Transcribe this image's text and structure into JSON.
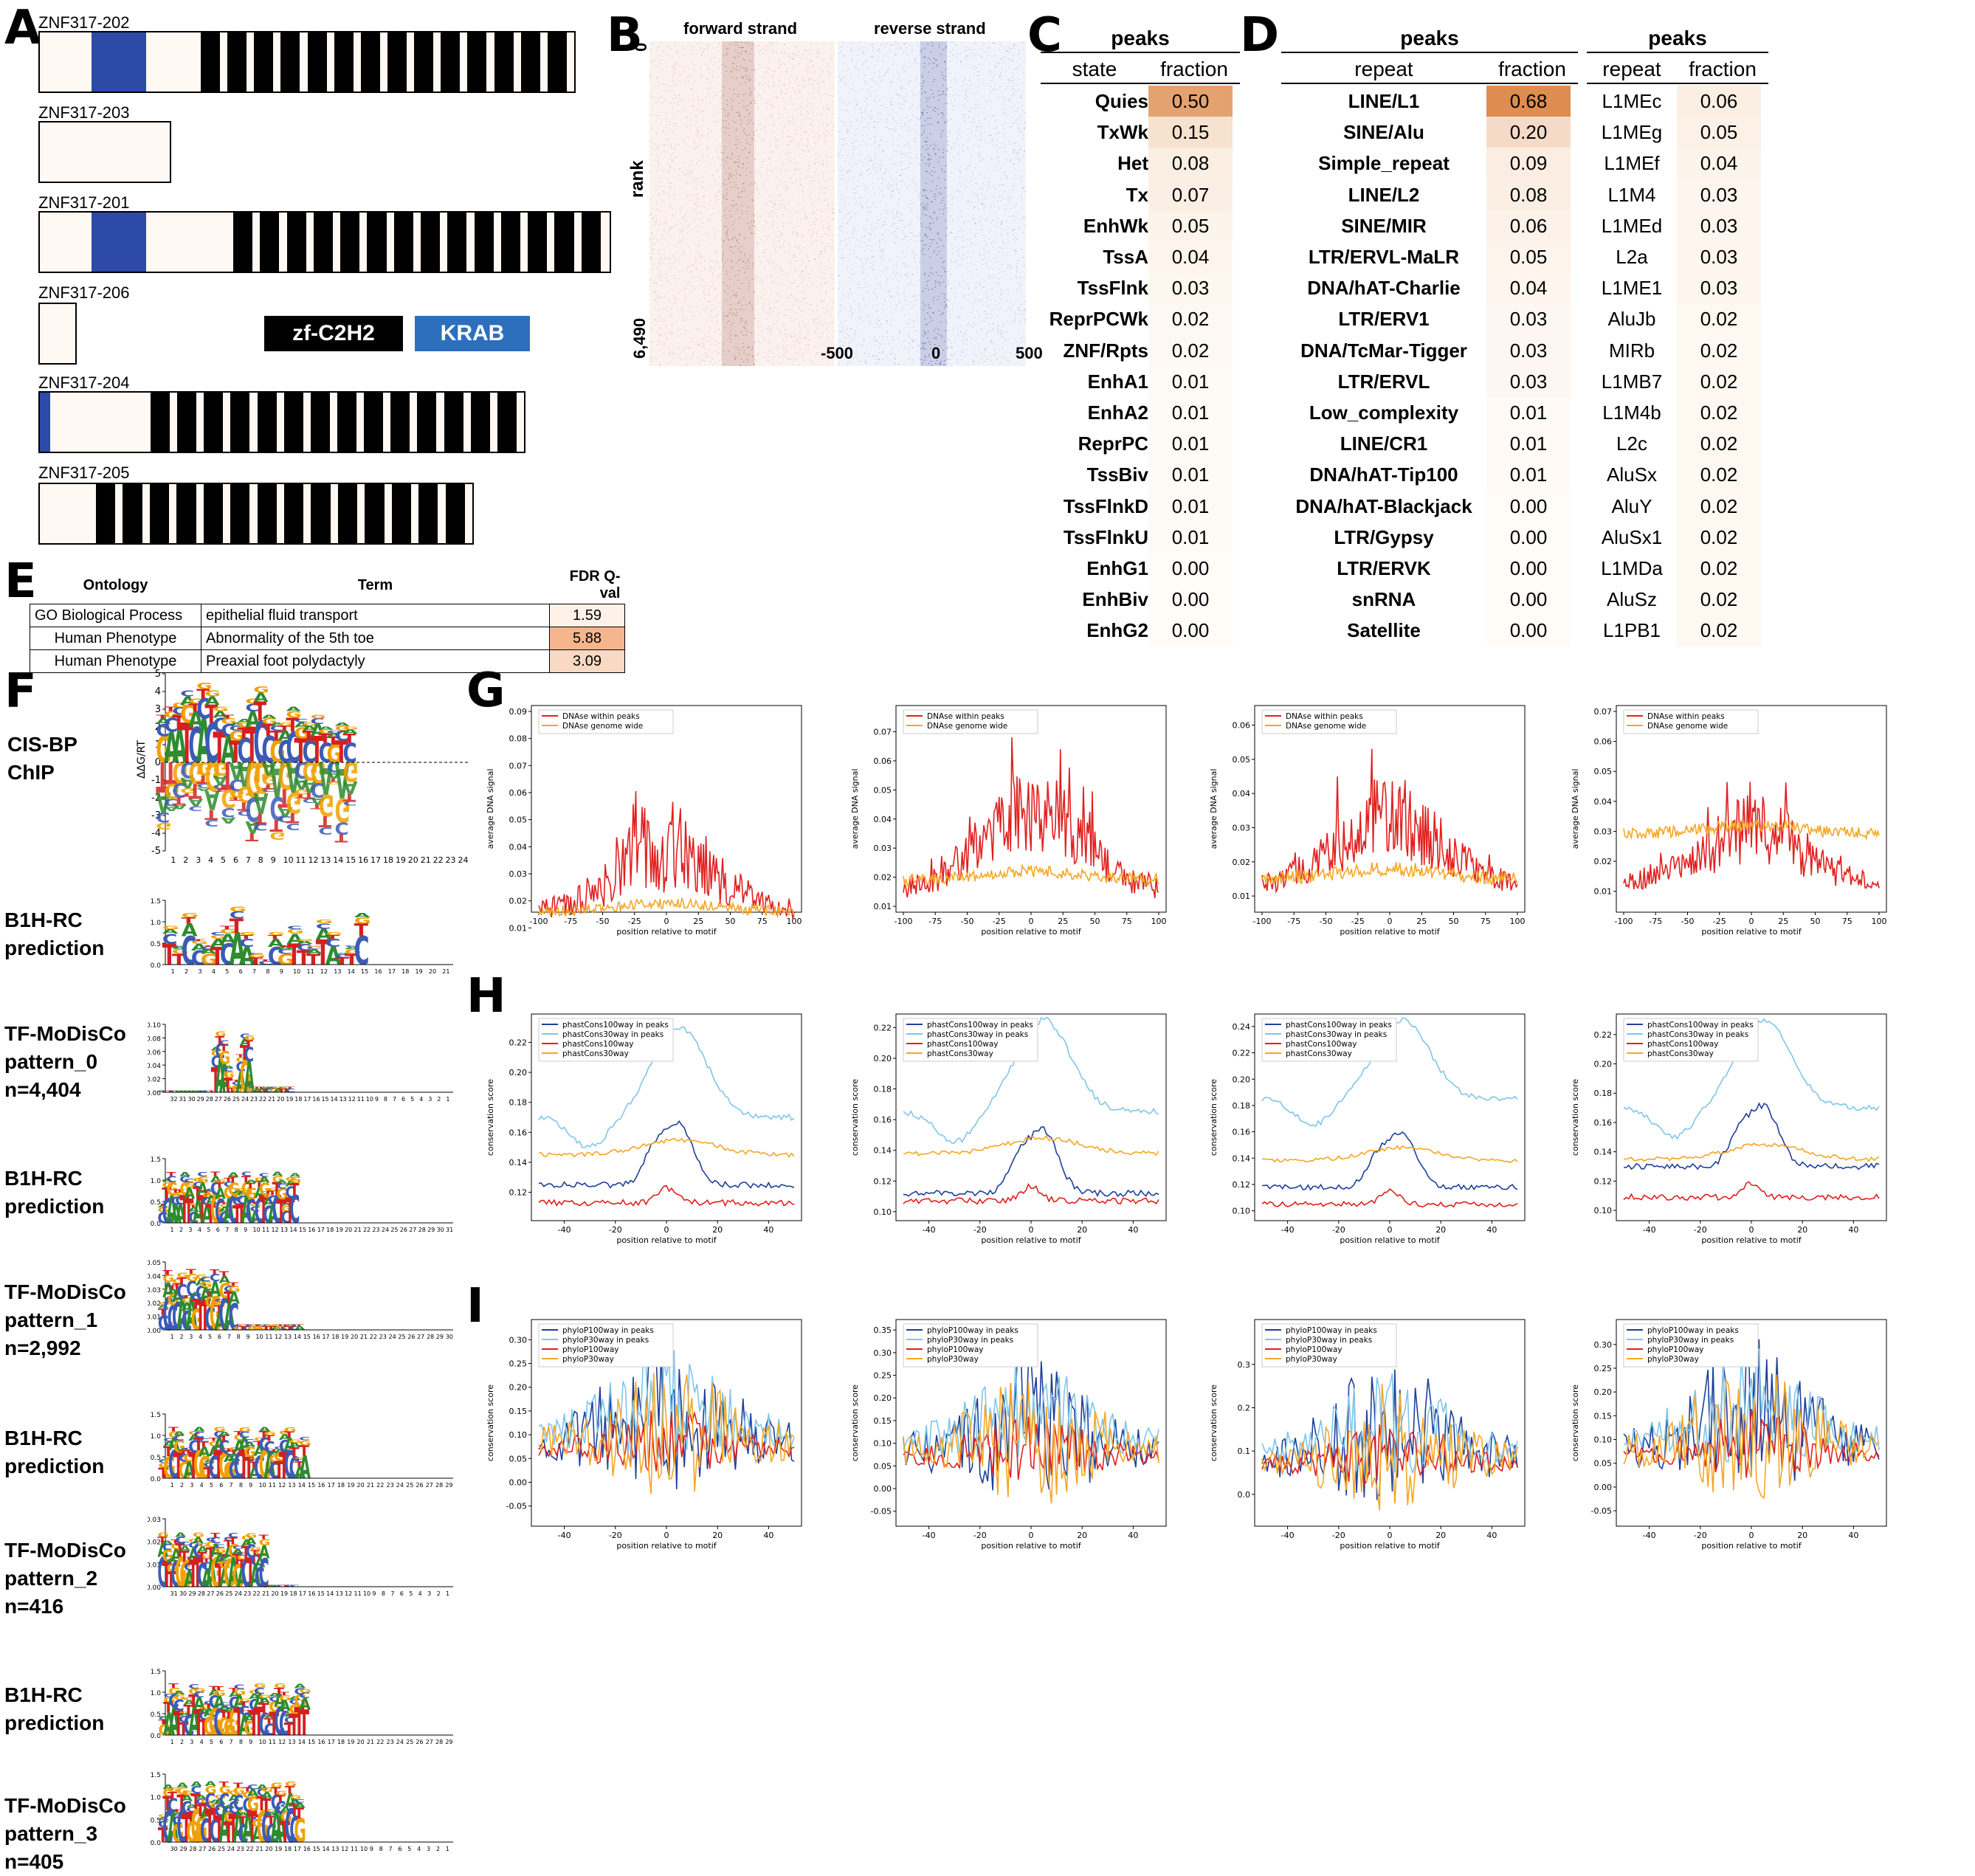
{
  "panels": {
    "A": "A",
    "B": "B",
    "C": "C",
    "D": "D",
    "E": "E",
    "F": "F",
    "G": "G",
    "H": "H",
    "I": "I"
  },
  "panelA": {
    "transcripts": [
      {
        "name": "ZNF317-202"
      },
      {
        "name": "ZNF317-203"
      },
      {
        "name": "ZNF317-201"
      },
      {
        "name": "ZNF317-206"
      },
      {
        "name": "ZNF317-204"
      },
      {
        "name": "ZNF317-205"
      }
    ],
    "legend": {
      "zf": "zf-C2H2",
      "krab": "KRAB",
      "zf_color": "#000000",
      "krab_color": "#2e6fbd"
    }
  },
  "panelB": {
    "forward": "forward strand",
    "reverse": "reverse strand",
    "ylabel": "rank",
    "ytop": "0",
    "ybottom": "6,490",
    "xticks": [
      "-500",
      "0",
      "500"
    ],
    "forward_color": "#c0392b",
    "reverse_color": "#1f2d8a"
  },
  "panelC": {
    "header": "peaks",
    "col1": "state",
    "col2": "fraction",
    "rows": [
      {
        "label": "Quies",
        "value": "0.50"
      },
      {
        "label": "TxWk",
        "value": "0.15"
      },
      {
        "label": "Het",
        "value": "0.08"
      },
      {
        "label": "Tx",
        "value": "0.07"
      },
      {
        "label": "EnhWk",
        "value": "0.05"
      },
      {
        "label": "TssA",
        "value": "0.04"
      },
      {
        "label": "TssFlnk",
        "value": "0.03"
      },
      {
        "label": "ReprPCWk",
        "value": "0.02"
      },
      {
        "label": "ZNF/Rpts",
        "value": "0.02"
      },
      {
        "label": "EnhA1",
        "value": "0.01"
      },
      {
        "label": "EnhA2",
        "value": "0.01"
      },
      {
        "label": "ReprPC",
        "value": "0.01"
      },
      {
        "label": "TssBiv",
        "value": "0.01"
      },
      {
        "label": "TssFlnkD",
        "value": "0.01"
      },
      {
        "label": "TssFlnkU",
        "value": "0.01"
      },
      {
        "label": "EnhG1",
        "value": "0.00"
      },
      {
        "label": "EnhBiv",
        "value": "0.00"
      },
      {
        "label": "EnhG2",
        "value": "0.00"
      }
    ]
  },
  "panelD1": {
    "header": "peaks",
    "col1": "repeat",
    "col2": "fraction",
    "rows": [
      {
        "label": "LINE/L1",
        "value": "0.68"
      },
      {
        "label": "SINE/Alu",
        "value": "0.20"
      },
      {
        "label": "Simple_repeat",
        "value": "0.09"
      },
      {
        "label": "LINE/L2",
        "value": "0.08"
      },
      {
        "label": "SINE/MIR",
        "value": "0.06"
      },
      {
        "label": "LTR/ERVL-MaLR",
        "value": "0.05"
      },
      {
        "label": "DNA/hAT-Charlie",
        "value": "0.04"
      },
      {
        "label": "LTR/ERV1",
        "value": "0.03"
      },
      {
        "label": "DNA/TcMar-Tigger",
        "value": "0.03"
      },
      {
        "label": "LTR/ERVL",
        "value": "0.03"
      },
      {
        "label": "Low_complexity",
        "value": "0.01"
      },
      {
        "label": "LINE/CR1",
        "value": "0.01"
      },
      {
        "label": "DNA/hAT-Tip100",
        "value": "0.01"
      },
      {
        "label": "DNA/hAT-Blackjack",
        "value": "0.00"
      },
      {
        "label": "LTR/Gypsy",
        "value": "0.00"
      },
      {
        "label": "LTR/ERVK",
        "value": "0.00"
      },
      {
        "label": "snRNA",
        "value": "0.00"
      },
      {
        "label": "Satellite",
        "value": "0.00"
      }
    ]
  },
  "panelD2": {
    "header": "peaks",
    "col1": "repeat",
    "col2": "fraction",
    "rows": [
      {
        "label": "L1MEc",
        "value": "0.06"
      },
      {
        "label": "L1MEg",
        "value": "0.05"
      },
      {
        "label": "L1MEf",
        "value": "0.04"
      },
      {
        "label": "L1M4",
        "value": "0.03"
      },
      {
        "label": "L1MEd",
        "value": "0.03"
      },
      {
        "label": "L2a",
        "value": "0.03"
      },
      {
        "label": "L1ME1",
        "value": "0.03"
      },
      {
        "label": "AluJb",
        "value": "0.02"
      },
      {
        "label": "MIRb",
        "value": "0.02"
      },
      {
        "label": "L1MB7",
        "value": "0.02"
      },
      {
        "label": "L1M4b",
        "value": "0.02"
      },
      {
        "label": "L2c",
        "value": "0.02"
      },
      {
        "label": "AluSx",
        "value": "0.02"
      },
      {
        "label": "AluY",
        "value": "0.02"
      },
      {
        "label": "AluSx1",
        "value": "0.02"
      },
      {
        "label": "L1MDa",
        "value": "0.02"
      },
      {
        "label": "AluSz",
        "value": "0.02"
      },
      {
        "label": "L1PB1",
        "value": "0.02"
      }
    ]
  },
  "panelE": {
    "headers": [
      "Ontology",
      "Term",
      "FDR Q-val"
    ],
    "rows": [
      {
        "ontology": "GO Biological Process",
        "term": "epithelial fluid transport",
        "q": "1.59"
      },
      {
        "ontology": "Human Phenotype",
        "term": "Abnormality of the 5th toe",
        "q": "5.88"
      },
      {
        "ontology": "Human Phenotype",
        "term": "Preaxial foot polydactyly",
        "q": "3.09"
      }
    ]
  },
  "panelF": {
    "labels": [
      [
        "CIS-BP",
        "ChIP"
      ],
      [
        "B1H-RC",
        "prediction"
      ],
      [
        "TF-MoDisCo",
        "pattern_0",
        "n=4,404"
      ],
      [
        "B1H-RC",
        "prediction"
      ],
      [
        "TF-MoDisCo",
        "pattern_1",
        "n=2,992"
      ],
      [
        "B1H-RC",
        "prediction"
      ],
      [
        "TF-MoDisCo",
        "pattern_2",
        "n=416"
      ],
      [
        "B1H-RC",
        "prediction"
      ],
      [
        "TF-MoDisCo",
        "pattern_3",
        "n=405"
      ]
    ],
    "cisbp_ylabel": "ΔΔG/RT",
    "cisbp_yticks": [
      "5",
      "4",
      "3",
      "2",
      "1",
      "0",
      "-1",
      "-2",
      "-3",
      "-4",
      "-5"
    ],
    "base_colors": {
      "A": "#2e8b2e",
      "C": "#3b5bb5",
      "G": "#f0a000",
      "T": "#d62020"
    }
  },
  "panelG": {
    "ylabel": "average DNA signal",
    "xlabel": "position relative to motif",
    "legend": [
      "DNAse within peaks",
      "DNAse genome wide"
    ],
    "colors": [
      "#e0201e",
      "#f5a623"
    ],
    "xticks": [
      "-100",
      "-75",
      "-50",
      "-25",
      "0",
      "25",
      "50",
      "75",
      "100"
    ],
    "yticks": [
      [
        "0.01",
        "0.02",
        "0.03",
        "0.04",
        "0.05",
        "0.06",
        "0.07",
        "0.08",
        "0.09"
      ],
      [
        "0.01",
        "0.02",
        "0.03",
        "0.04",
        "0.05",
        "0.06",
        "0.07"
      ],
      [
        "0.01",
        "0.02",
        "0.03",
        "0.04",
        "0.05",
        "0.06"
      ],
      [
        "0.01",
        "0.02",
        "0.03",
        "0.04",
        "0.05",
        "0.06",
        "0.07"
      ]
    ]
  },
  "panelH": {
    "ylabel": "conservation score",
    "xlabel": "position relative to motif",
    "legend": [
      "phastCons100way in peaks",
      "phastCons30way in peaks",
      "phastCons100way",
      "phastCons30way"
    ],
    "colors": [
      "#1f3f9a",
      "#7fc6e8",
      "#e0201e",
      "#f5a623"
    ],
    "xticks": [
      "-40",
      "-20",
      "0",
      "20",
      "40"
    ],
    "yticks": [
      [
        "0.12",
        "0.14",
        "0.16",
        "0.18",
        "0.20",
        "0.22"
      ],
      [
        "0.10",
        "0.12",
        "0.14",
        "0.16",
        "0.18",
        "0.20",
        "0.22"
      ],
      [
        "0.10",
        "0.12",
        "0.14",
        "0.16",
        "0.18",
        "0.20",
        "0.22",
        "0.24"
      ],
      [
        "0.10",
        "0.12",
        "0.14",
        "0.16",
        "0.18",
        "0.20",
        "0.22"
      ]
    ]
  },
  "panelI": {
    "ylabel": "conservation score",
    "xlabel": "position relative to motif",
    "legend": [
      "phyloP100way in peaks",
      "phyloP30way in peaks",
      "phyloP100way",
      "phyloP30way"
    ],
    "colors": [
      "#1f3f9a",
      "#7fc6e8",
      "#e0201e",
      "#f5a623"
    ],
    "xticks": [
      "-40",
      "-20",
      "0",
      "20",
      "40"
    ],
    "yticks": [
      [
        "-0.05",
        "0.00",
        "0.05",
        "0.10",
        "0.15",
        "0.20",
        "0.25",
        "0.30"
      ],
      [
        "-0.05",
        "0.00",
        "0.05",
        "0.10",
        "0.15",
        "0.20",
        "0.25",
        "0.30",
        "0.35"
      ],
      [
        "0.0",
        "0.1",
        "0.2",
        "0.3"
      ],
      [
        "-0.05",
        "0.00",
        "0.05",
        "0.10",
        "0.15",
        "0.20",
        "0.25",
        "0.30"
      ]
    ]
  }
}
